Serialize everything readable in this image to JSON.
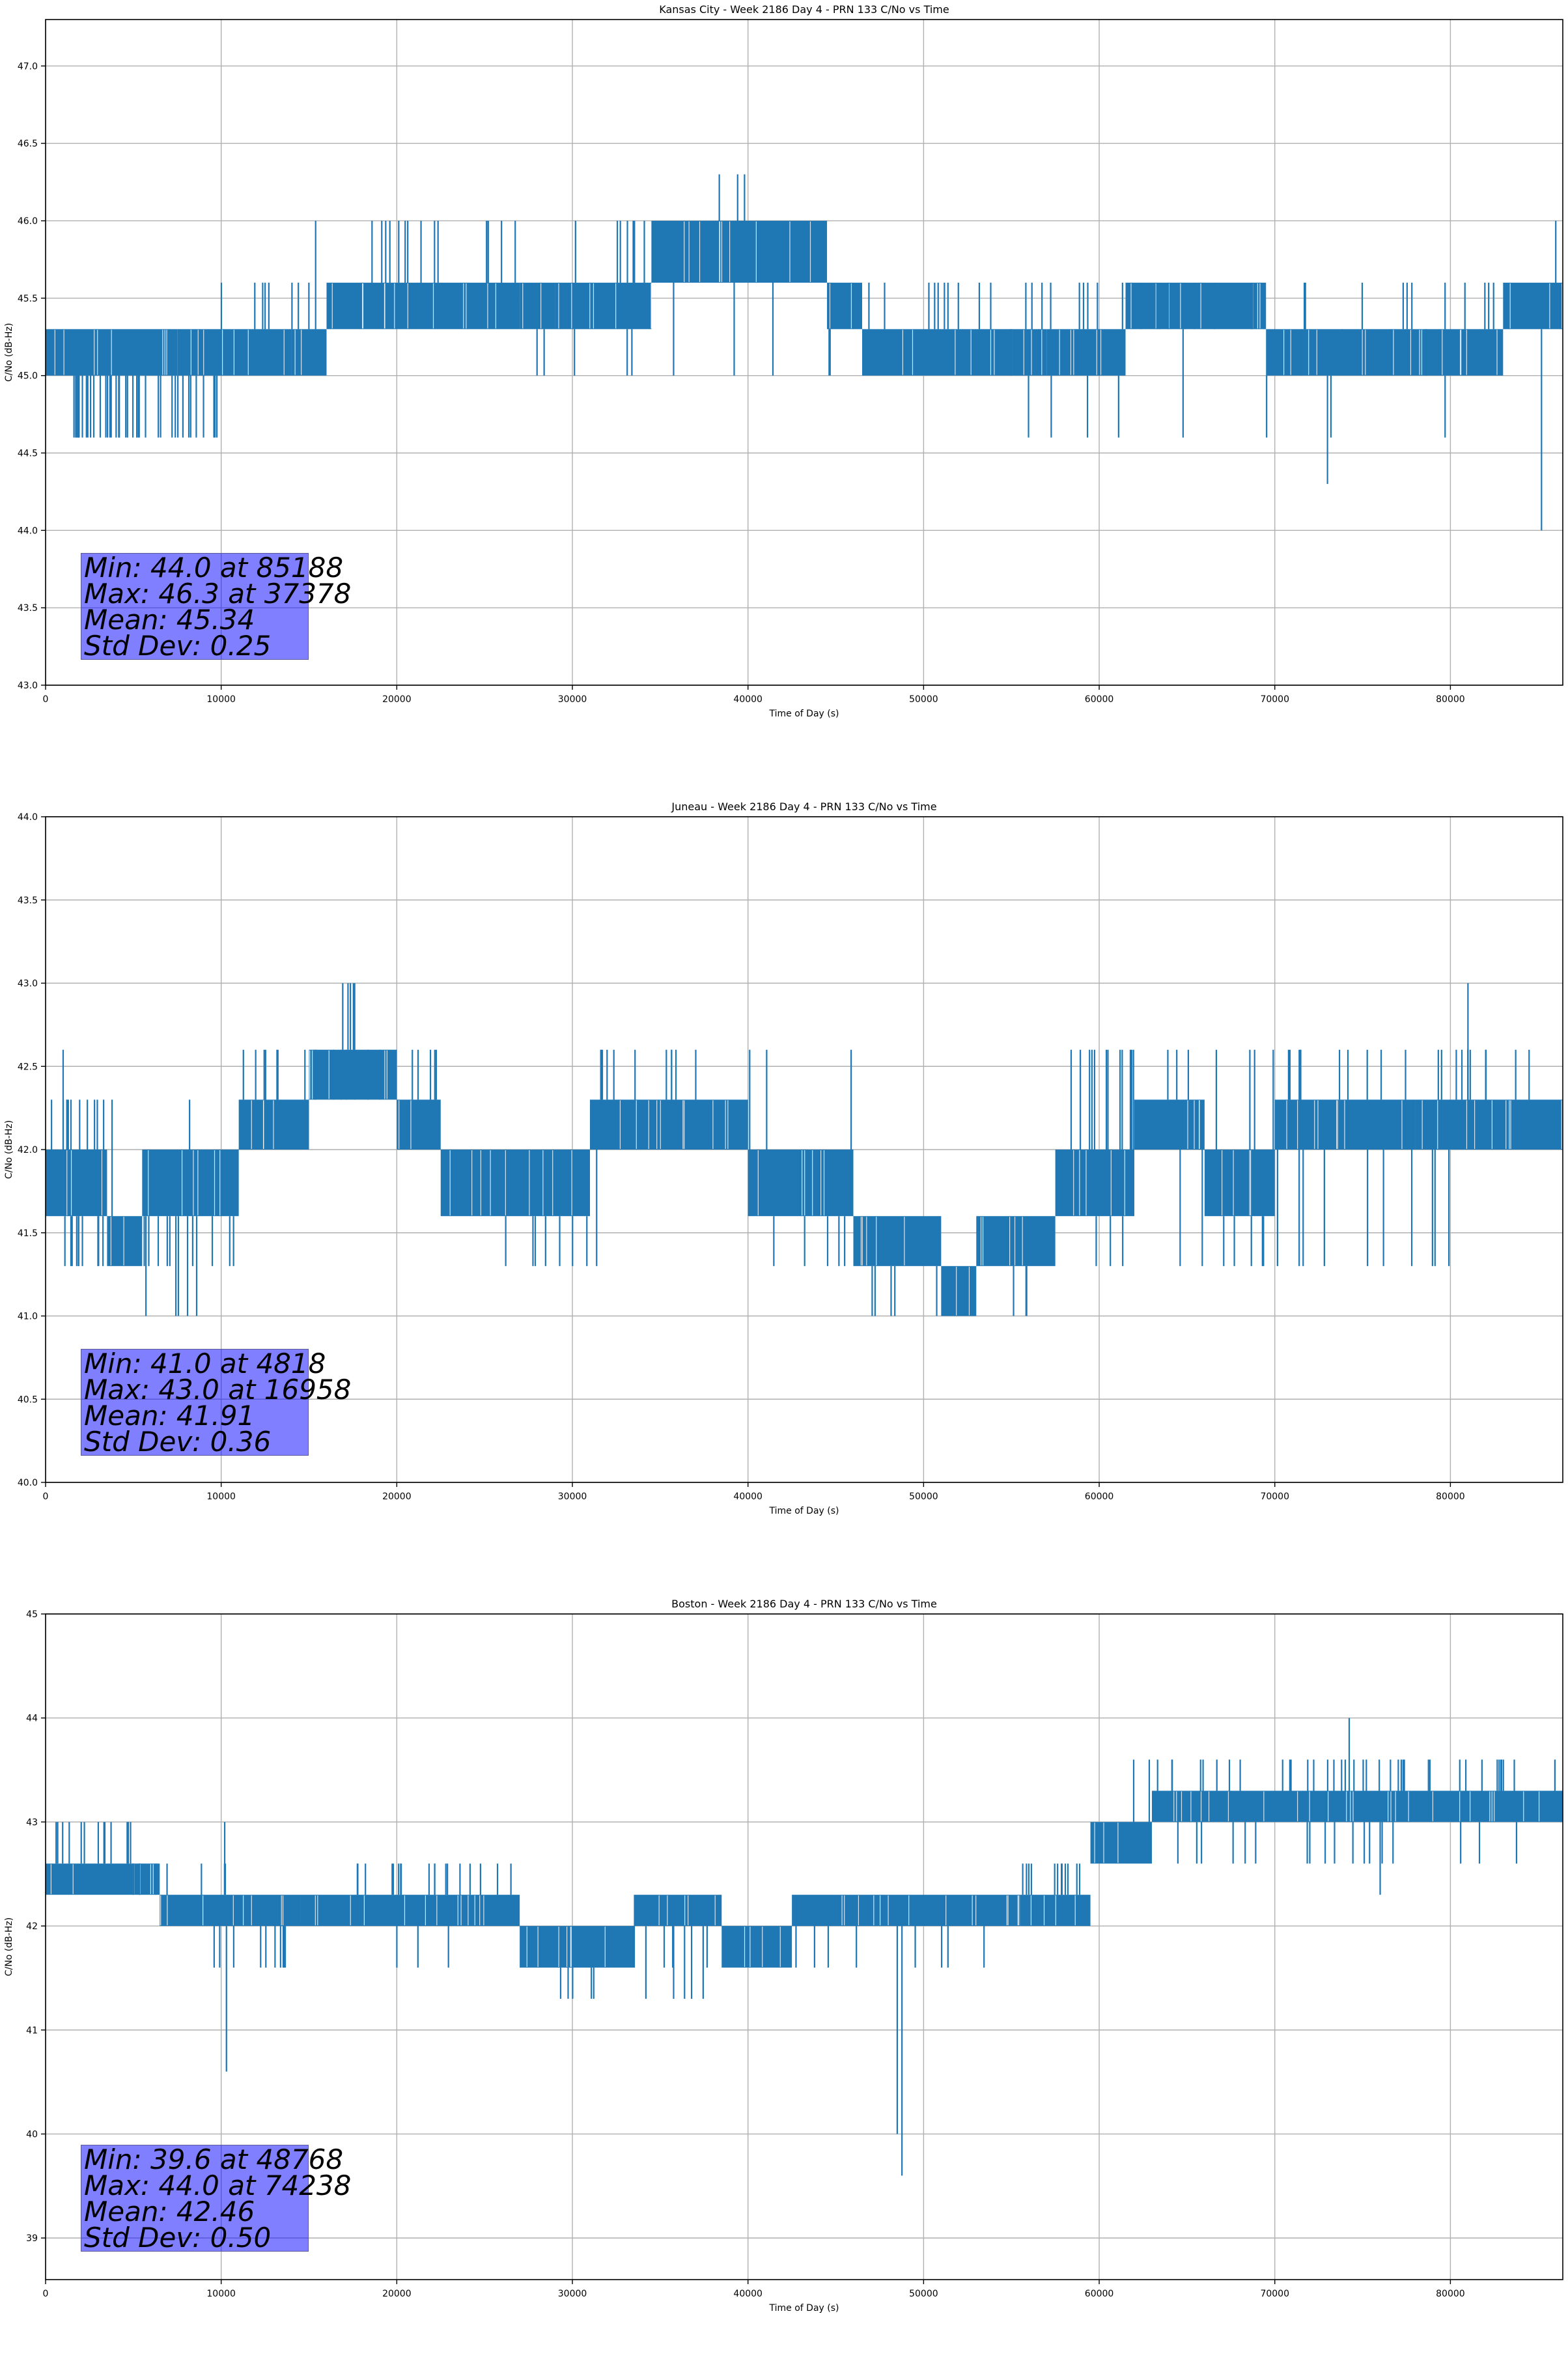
{
  "figure": {
    "series_color": "#1f77b4",
    "grid_color": "#b0b0b0",
    "stats_box_color": "#8080ff"
  },
  "chart_data": [
    {
      "type": "line",
      "title": "Kansas City - Week 2186 Day 4 - PRN 133 C/No vs Time",
      "xlabel": "Time of Day (s)",
      "ylabel": "C/No (dB-Hz)",
      "xlim": [
        0,
        86400
      ],
      "ylim": [
        43.0,
        47.3
      ],
      "xticks": [
        0,
        10000,
        20000,
        30000,
        40000,
        50000,
        60000,
        70000,
        80000
      ],
      "yticks": [
        43.0,
        43.5,
        44.0,
        44.5,
        45.0,
        45.5,
        46.0,
        46.5,
        47.0
      ],
      "ytick_labels": [
        "43.0",
        "43.5",
        "44.0",
        "44.5",
        "45.0",
        "45.5",
        "46.0",
        "46.5",
        "47.0"
      ],
      "grid": true,
      "stats": [
        "Min: 44.0 at 85188",
        "Max: 46.3 at 37378",
        "Mean: 45.34",
        "Std Dev: 0.25"
      ],
      "series": [
        {
          "bands": [
            {
              "x": [
                0,
                7500
              ],
              "lo": 45.0,
              "hi": 45.3
            },
            {
              "x": [
                7500,
                14000
              ],
              "lo": 45.0,
              "hi": 45.3
            },
            {
              "x": [
                14000,
                16000
              ],
              "lo": 45.0,
              "hi": 45.3
            },
            {
              "x": [
                16000,
                27000
              ],
              "lo": 45.3,
              "hi": 45.6
            },
            {
              "x": [
                27000,
                29000
              ],
              "lo": 45.3,
              "hi": 45.6
            },
            {
              "x": [
                29000,
                34500
              ],
              "lo": 45.3,
              "hi": 45.6
            },
            {
              "x": [
                34500,
                44500
              ],
              "lo": 45.6,
              "hi": 46.0
            },
            {
              "x": [
                44500,
                46500
              ],
              "lo": 45.3,
              "hi": 45.6
            },
            {
              "x": [
                46500,
                57000
              ],
              "lo": 45.0,
              "hi": 45.3
            },
            {
              "x": [
                57000,
                61500
              ],
              "lo": 45.0,
              "hi": 45.3
            },
            {
              "x": [
                61500,
                69500
              ],
              "lo": 45.3,
              "hi": 45.6
            },
            {
              "x": [
                69500,
                83000
              ],
              "lo": 45.0,
              "hi": 45.3
            },
            {
              "x": [
                83000,
                86400
              ],
              "lo": 45.3,
              "hi": 45.6
            }
          ],
          "spikes": [
            {
              "x": [
                1600,
                10000
              ],
              "v": 44.6,
              "n": 40
            },
            {
              "x": [
                14500,
                27000
              ],
              "v": 46.0,
              "n": 16
            },
            {
              "x": [
                30000,
                37000
              ],
              "v": 46.0,
              "n": 14
            },
            {
              "x": [
                37000,
                41000
              ],
              "v": 46.3,
              "n": 3
            },
            {
              "x": [
                10000,
                16000
              ],
              "v": 45.6,
              "n": 8
            },
            {
              "x": [
                46500,
                83000
              ],
              "v": 45.6,
              "n": 40
            },
            {
              "x": [
                27000,
                45000
              ],
              "v": 45.0,
              "n": 10
            },
            {
              "x": [
                49000,
                82000
              ],
              "v": 45.3,
              "n": 12
            },
            {
              "x": [
                55000,
                82000
              ],
              "v": 44.6,
              "n": 8
            },
            {
              "x": [
                73000,
                73000
              ],
              "v": 44.3,
              "n": 1
            },
            {
              "x": [
                85188,
                85188
              ],
              "v": 44.0,
              "n": 1
            },
            {
              "x": [
                86000,
                86000
              ],
              "v": 46.0,
              "n": 1
            }
          ]
        }
      ]
    },
    {
      "type": "line",
      "title": "Juneau - Week 2186 Day 4 - PRN 133 C/No vs Time",
      "xlabel": "Time of Day (s)",
      "ylabel": "C/No (dB-Hz)",
      "xlim": [
        0,
        86400
      ],
      "ylim": [
        40.0,
        44.0
      ],
      "xticks": [
        0,
        10000,
        20000,
        30000,
        40000,
        50000,
        60000,
        70000,
        80000
      ],
      "yticks": [
        40.0,
        40.5,
        41.0,
        41.5,
        42.0,
        42.5,
        43.0,
        43.5,
        44.0
      ],
      "ytick_labels": [
        "40.0",
        "40.5",
        "41.0",
        "41.5",
        "42.0",
        "42.5",
        "43.0",
        "43.5",
        "44.0"
      ],
      "grid": true,
      "stats": [
        "Min: 41.0 at 4818",
        "Max: 43.0 at 16958",
        "Mean: 41.91",
        "Std Dev: 0.36"
      ],
      "series": [
        {
          "bands": [
            {
              "x": [
                0,
                3500
              ],
              "lo": 41.6,
              "hi": 42.0
            },
            {
              "x": [
                3500,
                5500
              ],
              "lo": 41.3,
              "hi": 41.6
            },
            {
              "x": [
                5500,
                11000
              ],
              "lo": 41.6,
              "hi": 42.0
            },
            {
              "x": [
                11000,
                15000
              ],
              "lo": 42.0,
              "hi": 42.3
            },
            {
              "x": [
                15000,
                20000
              ],
              "lo": 42.3,
              "hi": 42.6
            },
            {
              "x": [
                20000,
                22500
              ],
              "lo": 42.0,
              "hi": 42.3
            },
            {
              "x": [
                22500,
                31000
              ],
              "lo": 41.6,
              "hi": 42.0
            },
            {
              "x": [
                31000,
                40000
              ],
              "lo": 42.0,
              "hi": 42.3
            },
            {
              "x": [
                40000,
                46000
              ],
              "lo": 41.6,
              "hi": 42.0
            },
            {
              "x": [
                46000,
                51000
              ],
              "lo": 41.3,
              "hi": 41.6
            },
            {
              "x": [
                51000,
                53000
              ],
              "lo": 41.0,
              "hi": 41.3
            },
            {
              "x": [
                53000,
                57500
              ],
              "lo": 41.3,
              "hi": 41.6
            },
            {
              "x": [
                57500,
                62000
              ],
              "lo": 41.6,
              "hi": 42.0
            },
            {
              "x": [
                62000,
                66000
              ],
              "lo": 42.0,
              "hi": 42.3
            },
            {
              "x": [
                66000,
                70000
              ],
              "lo": 41.6,
              "hi": 42.0
            },
            {
              "x": [
                70000,
                78000
              ],
              "lo": 42.0,
              "hi": 42.3
            },
            {
              "x": [
                78000,
                86400
              ],
              "lo": 42.0,
              "hi": 42.3
            }
          ],
          "spikes": [
            {
              "x": [
                0,
                4000
              ],
              "v": 42.3,
              "n": 12
            },
            {
              "x": [
                700,
                11000
              ],
              "v": 41.3,
              "n": 22
            },
            {
              "x": [
                4800,
                8700
              ],
              "v": 41.0,
              "n": 5
            },
            {
              "x": [
                1000,
                1200
              ],
              "v": 42.6,
              "n": 1
            },
            {
              "x": [
                8200,
                8300
              ],
              "v": 42.3,
              "n": 1
            },
            {
              "x": [
                11000,
                23000
              ],
              "v": 42.6,
              "n": 20
            },
            {
              "x": [
                16900,
                17600
              ],
              "v": 43.0,
              "n": 5
            },
            {
              "x": [
                23000,
                32000
              ],
              "v": 41.3,
              "n": 8
            },
            {
              "x": [
                31000,
                46000
              ],
              "v": 42.6,
              "n": 14
            },
            {
              "x": [
                41000,
                51000
              ],
              "v": 41.3,
              "n": 10
            },
            {
              "x": [
                47000,
                57500
              ],
              "v": 41.0,
              "n": 10
            },
            {
              "x": [
                58000,
                86000
              ],
              "v": 42.6,
              "n": 40
            },
            {
              "x": [
                59000,
                80000
              ],
              "v": 41.3,
              "n": 20
            },
            {
              "x": [
                81000,
                81000
              ],
              "v": 43.0,
              "n": 1
            }
          ]
        }
      ]
    },
    {
      "type": "line",
      "title": "Boston - Week 2186 Day 4 - PRN 133 C/No vs Time",
      "xlabel": "Time of Day (s)",
      "ylabel": "C/No (dB-Hz)",
      "xlim": [
        0,
        86400
      ],
      "ylim": [
        38.6,
        45.0
      ],
      "xticks": [
        0,
        10000,
        20000,
        30000,
        40000,
        50000,
        60000,
        70000,
        80000
      ],
      "yticks": [
        39,
        40,
        41,
        42,
        43,
        44,
        45
      ],
      "ytick_labels": [
        "39",
        "40",
        "41",
        "42",
        "43",
        "44",
        "45"
      ],
      "grid": true,
      "stats": [
        "Min: 39.6 at 48768",
        "Max: 44.0 at 74238",
        "Mean: 42.46",
        "Std Dev: 0.50"
      ],
      "series": [
        {
          "bands": [
            {
              "x": [
                0,
                6500
              ],
              "lo": 42.3,
              "hi": 42.6
            },
            {
              "x": [
                6500,
                14500
              ],
              "lo": 42.0,
              "hi": 42.3
            },
            {
              "x": [
                14500,
                27000
              ],
              "lo": 42.0,
              "hi": 42.3
            },
            {
              "x": [
                27000,
                33500
              ],
              "lo": 41.6,
              "hi": 42.0
            },
            {
              "x": [
                33500,
                38500
              ],
              "lo": 42.0,
              "hi": 42.3
            },
            {
              "x": [
                38500,
                42500
              ],
              "lo": 41.6,
              "hi": 42.0
            },
            {
              "x": [
                42500,
                55500
              ],
              "lo": 42.0,
              "hi": 42.3
            },
            {
              "x": [
                55500,
                59500
              ],
              "lo": 42.0,
              "hi": 42.3
            },
            {
              "x": [
                59500,
                63000
              ],
              "lo": 42.6,
              "hi": 43.0
            },
            {
              "x": [
                63000,
                86400
              ],
              "lo": 43.0,
              "hi": 43.3
            }
          ],
          "spikes": [
            {
              "x": [
                0,
                5000
              ],
              "v": 43.0,
              "n": 14
            },
            {
              "x": [
                4000,
                11000
              ],
              "v": 42.6,
              "n": 8
            },
            {
              "x": [
                9500,
                14000
              ],
              "v": 41.6,
              "n": 10
            },
            {
              "x": [
                10300,
                10300
              ],
              "v": 40.6,
              "n": 1
            },
            {
              "x": [
                10200,
                10500
              ],
              "v": 43.0,
              "n": 1
            },
            {
              "x": [
                16500,
                26500
              ],
              "v": 42.6,
              "n": 18
            },
            {
              "x": [
                20000,
                38000
              ],
              "v": 41.6,
              "n": 12
            },
            {
              "x": [
                28000,
                38500
              ],
              "v": 41.3,
              "n": 10
            },
            {
              "x": [
                38000,
                55000
              ],
              "v": 41.6,
              "n": 10
            },
            {
              "x": [
                48768,
                48768
              ],
              "v": 39.6,
              "n": 1
            },
            {
              "x": [
                48500,
                48700
              ],
              "v": 40.0,
              "n": 1
            },
            {
              "x": [
                55500,
                60000
              ],
              "v": 42.6,
              "n": 12
            },
            {
              "x": [
                60000,
                86000
              ],
              "v": 43.6,
              "n": 40
            },
            {
              "x": [
                60000,
                84000
              ],
              "v": 42.6,
              "n": 20
            },
            {
              "x": [
                74238,
                74238
              ],
              "v": 44.0,
              "n": 1
            },
            {
              "x": [
                76000,
                76000
              ],
              "v": 42.3,
              "n": 1
            }
          ]
        }
      ]
    }
  ]
}
